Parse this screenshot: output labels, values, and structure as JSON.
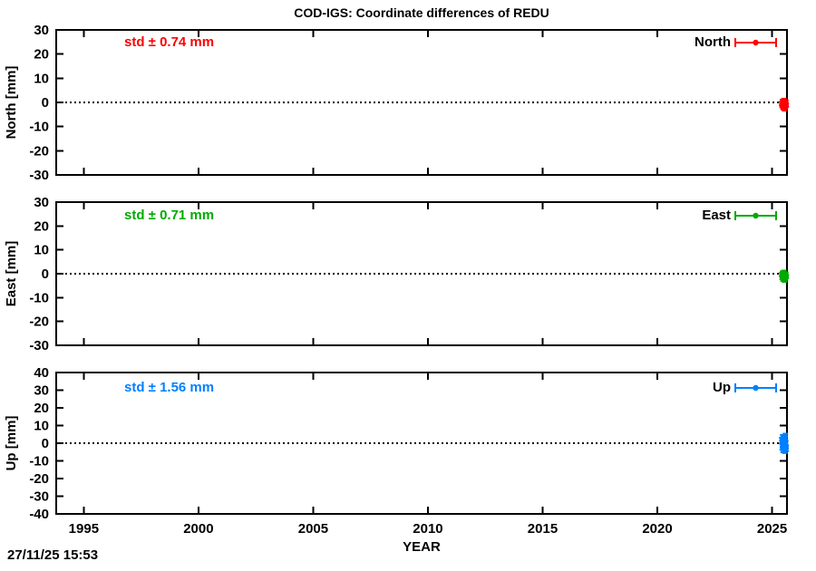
{
  "title": "COD-IGS: Coordinate differences of REDU",
  "timestamp": "27/11/25 15:53",
  "xlabel": "YEAR",
  "chart_data": {
    "type": "scatter",
    "title": "COD-IGS: Coordinate differences of REDU",
    "xlabel": "YEAR",
    "x_ticks": [
      "1995",
      "2000",
      "2005",
      "2010",
      "2015",
      "2020",
      "2025"
    ],
    "x_tick_values": [
      1995,
      2000,
      2005,
      2010,
      2015,
      2020,
      2025
    ],
    "xlim": [
      1993.8,
      2025.65
    ],
    "grid": false,
    "legend_position": "top-right-inside",
    "panels": [
      {
        "name": "North",
        "ylabel": "North [mm]",
        "std_label": "std ± 0.74 mm",
        "std_value_mm": 0.74,
        "color": "#ff0000",
        "ylim": [
          -30,
          30
        ],
        "y_ticks": [
          30,
          20,
          10,
          0,
          -10,
          -20,
          -30
        ],
        "zero_line": true,
        "error": 0.74,
        "points": [
          {
            "x": 2025.42,
            "y": -0.5
          },
          {
            "x": 2025.44,
            "y": -1.3
          },
          {
            "x": 2025.46,
            "y": 0.4
          },
          {
            "x": 2025.48,
            "y": -2.1
          },
          {
            "x": 2025.5,
            "y": -1.6
          },
          {
            "x": 2025.52,
            "y": 0.8
          },
          {
            "x": 2025.54,
            "y": -2.6
          },
          {
            "x": 2025.56,
            "y": -0.9
          },
          {
            "x": 2025.58,
            "y": -1.9
          },
          {
            "x": 2025.6,
            "y": 0.1
          },
          {
            "x": 2025.62,
            "y": -1.1
          }
        ]
      },
      {
        "name": "East",
        "ylabel": "East [mm]",
        "std_label": "std ± 0.71 mm",
        "std_value_mm": 0.71,
        "color": "#00aa00",
        "ylim": [
          -30,
          30
        ],
        "y_ticks": [
          30,
          20,
          10,
          0,
          -10,
          -20,
          -30
        ],
        "zero_line": true,
        "error": 0.71,
        "points": [
          {
            "x": 2025.42,
            "y": -0.4
          },
          {
            "x": 2025.44,
            "y": -1.6
          },
          {
            "x": 2025.46,
            "y": 0.3
          },
          {
            "x": 2025.48,
            "y": -2.3
          },
          {
            "x": 2025.5,
            "y": -1.0
          },
          {
            "x": 2025.52,
            "y": 0.6
          },
          {
            "x": 2025.54,
            "y": -2.7
          },
          {
            "x": 2025.56,
            "y": -0.8
          },
          {
            "x": 2025.58,
            "y": -1.8
          },
          {
            "x": 2025.6,
            "y": -0.2
          },
          {
            "x": 2025.62,
            "y": -1.2
          }
        ]
      },
      {
        "name": "Up",
        "ylabel": "Up [mm]",
        "std_label": "std ± 1.56 mm",
        "std_value_mm": 1.56,
        "color": "#0080ff",
        "ylim": [
          -40,
          40
        ],
        "y_ticks": [
          40,
          30,
          20,
          10,
          0,
          -10,
          -20,
          -30,
          -40
        ],
        "zero_line": true,
        "error": 1.56,
        "points": [
          {
            "x": 2025.42,
            "y": 1.5
          },
          {
            "x": 2025.44,
            "y": -2.2
          },
          {
            "x": 2025.46,
            "y": 3.1
          },
          {
            "x": 2025.48,
            "y": -3.6
          },
          {
            "x": 2025.5,
            "y": 0.5
          },
          {
            "x": 2025.52,
            "y": -1.1
          },
          {
            "x": 2025.54,
            "y": 2.4
          },
          {
            "x": 2025.56,
            "y": -4.0
          },
          {
            "x": 2025.58,
            "y": 3.8
          },
          {
            "x": 2025.6,
            "y": -0.4
          },
          {
            "x": 2025.62,
            "y": -2.9
          }
        ]
      }
    ]
  }
}
